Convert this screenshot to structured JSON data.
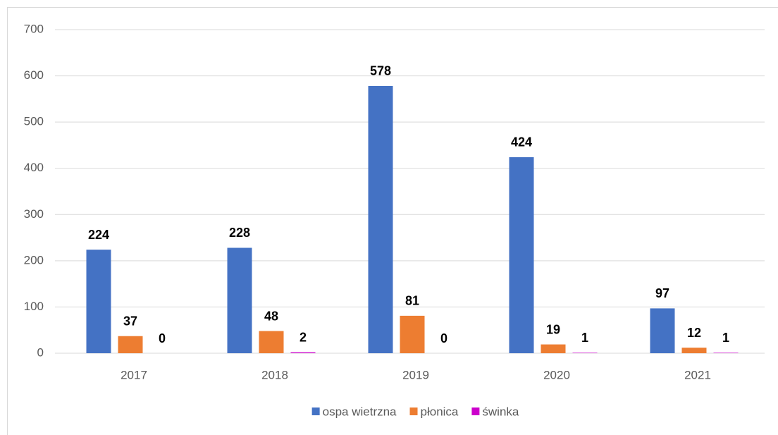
{
  "chart_data": {
    "type": "bar",
    "categories": [
      "2017",
      "2018",
      "2019",
      "2020",
      "2021"
    ],
    "series": [
      {
        "name": "ospa wietrzna",
        "color": "#4472c4",
        "values": [
          224,
          228,
          578,
          424,
          97
        ]
      },
      {
        "name": "płonica",
        "color": "#ed7d31",
        "values": [
          37,
          48,
          81,
          19,
          12
        ]
      },
      {
        "name": "świnka",
        "color": "#cc00cc",
        "values": [
          0,
          2,
          0,
          1,
          1
        ]
      }
    ],
    "ylim": [
      0,
      700
    ],
    "yticks": [
      0,
      100,
      200,
      300,
      400,
      500,
      600,
      700
    ],
    "grid": true,
    "legend": "bottom"
  }
}
